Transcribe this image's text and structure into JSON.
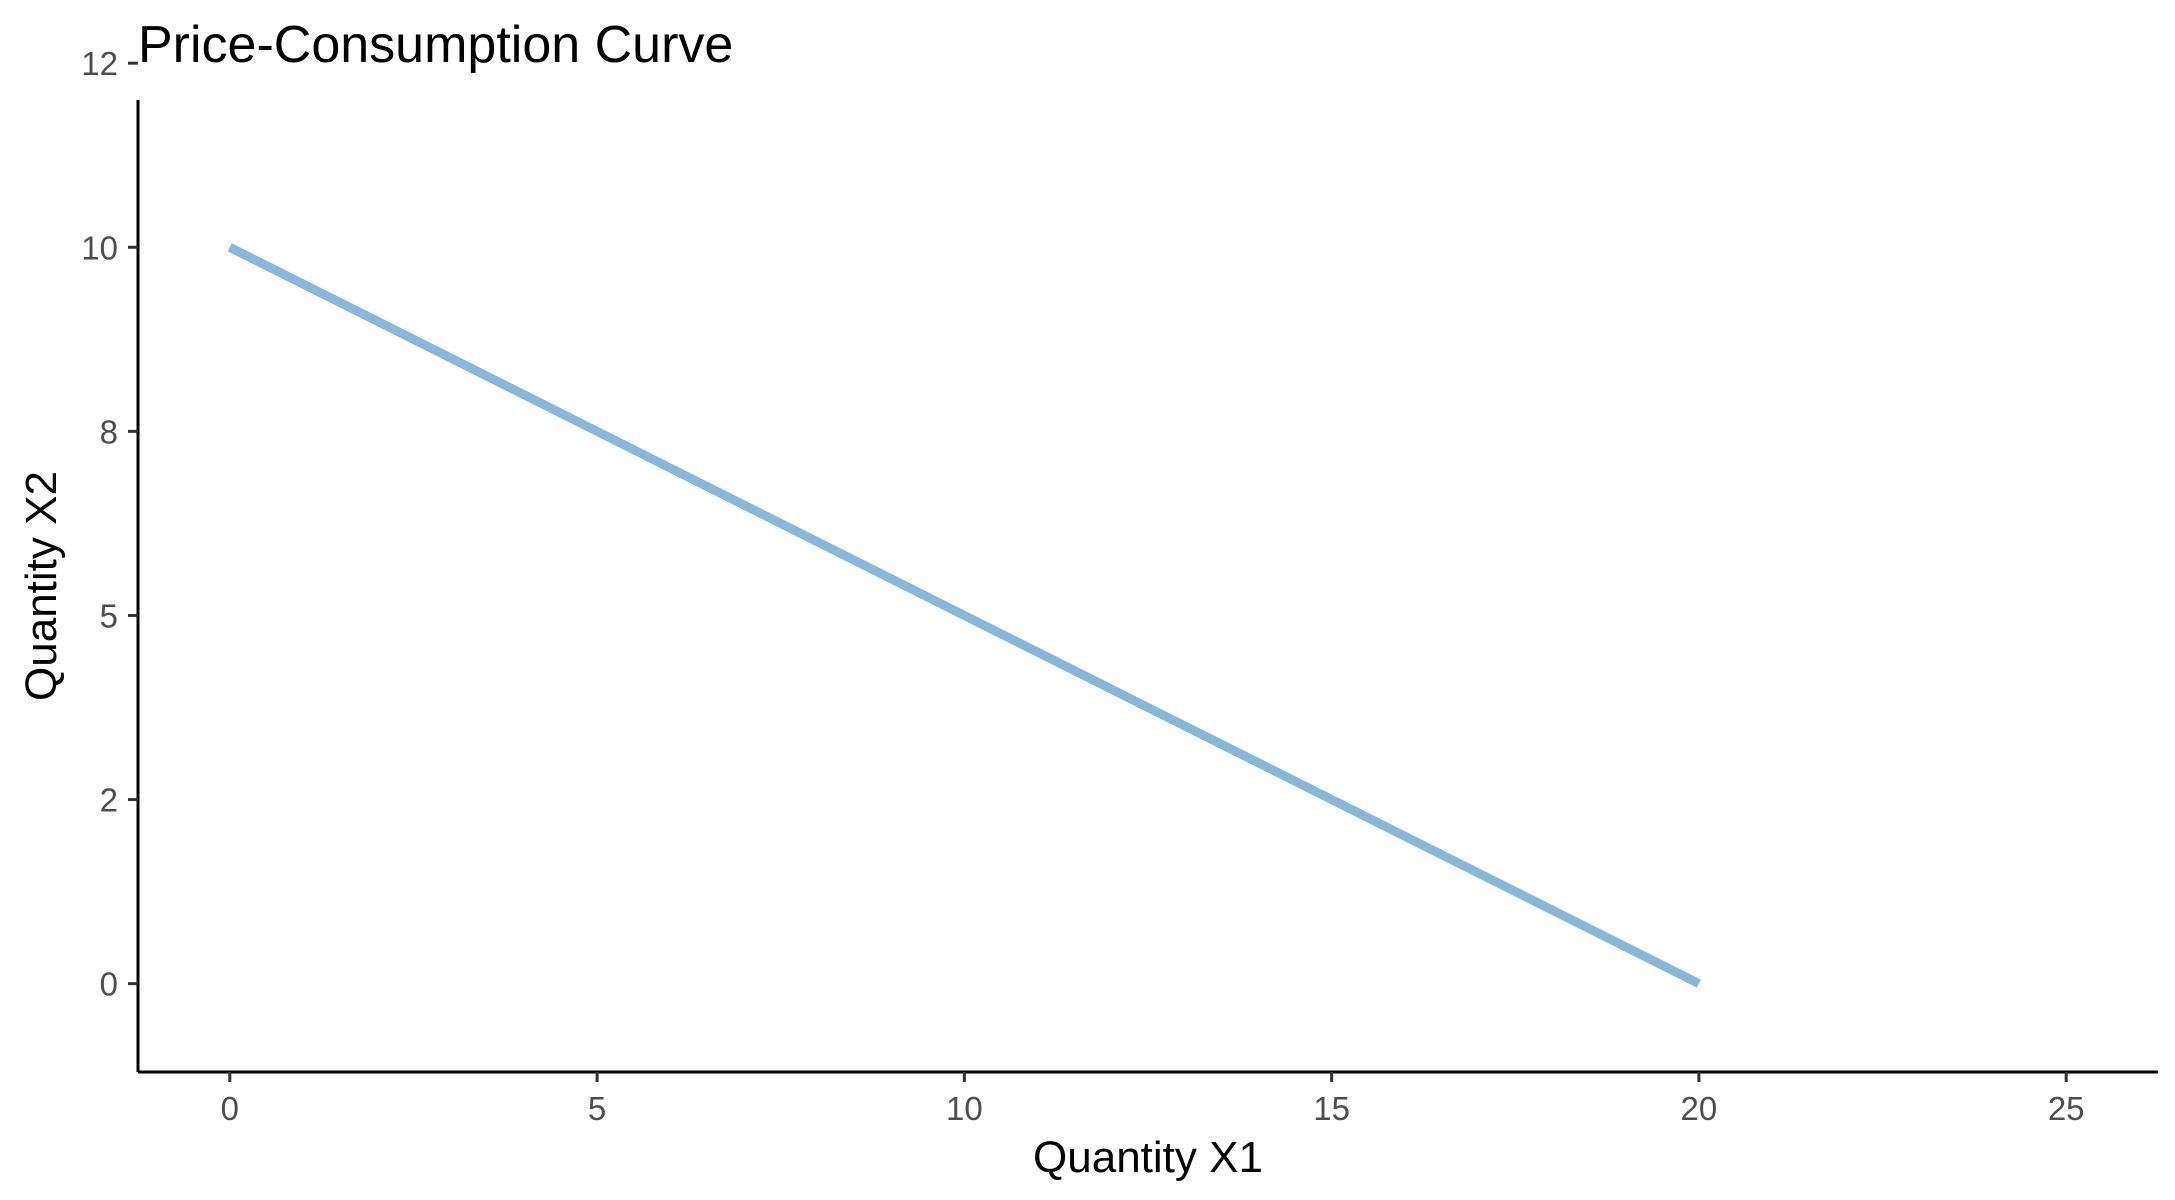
{
  "chart_data": {
    "type": "line",
    "title": "Price-Consumption Curve",
    "xlabel": "Quantity X1",
    "ylabel": "Quantity X2",
    "xlim": [
      -1.25,
      26.25
    ],
    "ylim": [
      -1.2,
      12.0
    ],
    "x_ticks": [
      0,
      5,
      10,
      15,
      20,
      25
    ],
    "x_tick_labels": [
      "0",
      "5",
      "10",
      "15",
      "20",
      "25"
    ],
    "y_ticks": [
      0,
      2.5,
      5,
      7.5,
      10,
      12.5
    ],
    "y_tick_labels": [
      "0",
      "2",
      "5",
      "8",
      "10",
      "12"
    ],
    "grid": false,
    "series": [
      {
        "color": "#86b8d9",
        "x": [
          0,
          20
        ],
        "y": [
          10,
          0
        ]
      }
    ]
  }
}
